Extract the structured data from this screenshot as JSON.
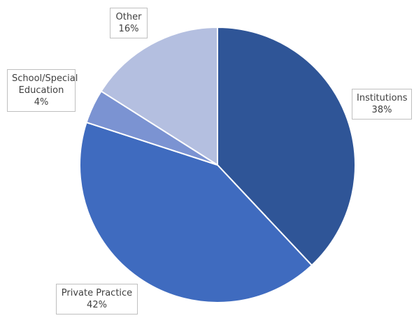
{
  "chart_data": {
    "type": "pie",
    "categories": [
      "Institutions",
      "Private Practice",
      "School/Special Education",
      "Other"
    ],
    "values": [
      38,
      42,
      4,
      16
    ],
    "value_labels": [
      "38%",
      "42%",
      "4%",
      "16%"
    ],
    "colors": [
      "#2f5597",
      "#3f6bbf",
      "#7b93d2",
      "#b4bfe0"
    ]
  }
}
